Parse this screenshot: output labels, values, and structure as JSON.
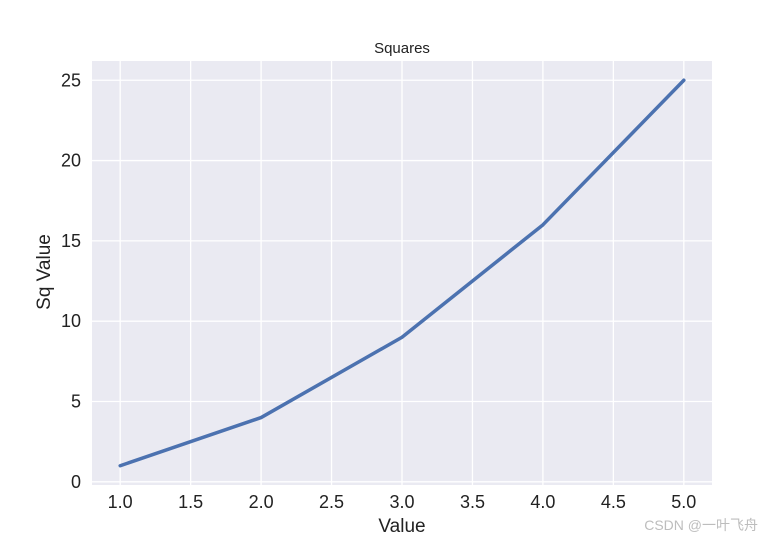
{
  "chart_data": {
    "type": "line",
    "title": "Squares",
    "xlabel": "Value",
    "ylabel": "Sq Value",
    "x": [
      1,
      2,
      3,
      4,
      5
    ],
    "series": [
      {
        "values": [
          1,
          4,
          9,
          16,
          25
        ],
        "color": "#4c72b0"
      }
    ],
    "xlim": [
      0.8,
      5.2
    ],
    "ylim": [
      -0.2,
      26.2
    ],
    "xticks": [
      1.0,
      1.5,
      2.0,
      2.5,
      3.0,
      3.5,
      4.0,
      4.5,
      5.0
    ],
    "xtick_labels": [
      "1.0",
      "1.5",
      "2.0",
      "2.5",
      "3.0",
      "3.5",
      "4.0",
      "4.5",
      "5.0"
    ],
    "yticks": [
      0,
      5,
      10,
      15,
      20,
      25
    ],
    "ytick_labels": [
      "0",
      "5",
      "10",
      "15",
      "20",
      "25"
    ],
    "grid": true,
    "legend": false,
    "plot_background": "#eaeaf2",
    "grid_color": "#ffffff"
  },
  "watermark": "CSDN @一叶飞舟"
}
